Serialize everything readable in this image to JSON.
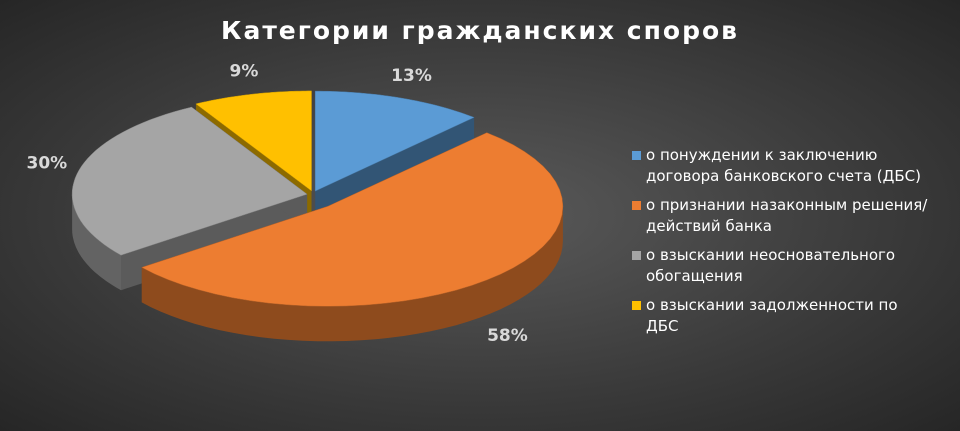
{
  "chart_data": {
    "type": "pie",
    "title": "Категории гражданских споров",
    "categories": [
      "о понуждении к заключению договора банковского счета (ДБС)",
      "о признании назаконным решения/действий банка",
      "о взыскании неосновательного обогащения",
      "о взыскании задолженности по ДБС"
    ],
    "values": [
      13,
      58,
      30,
      9
    ],
    "value_labels": [
      "13%",
      "58%",
      "30%",
      "9%"
    ],
    "colors": [
      "#5b9bd5",
      "#ed7d31",
      "#a5a5a5",
      "#ffc000"
    ],
    "legend": "right"
  }
}
